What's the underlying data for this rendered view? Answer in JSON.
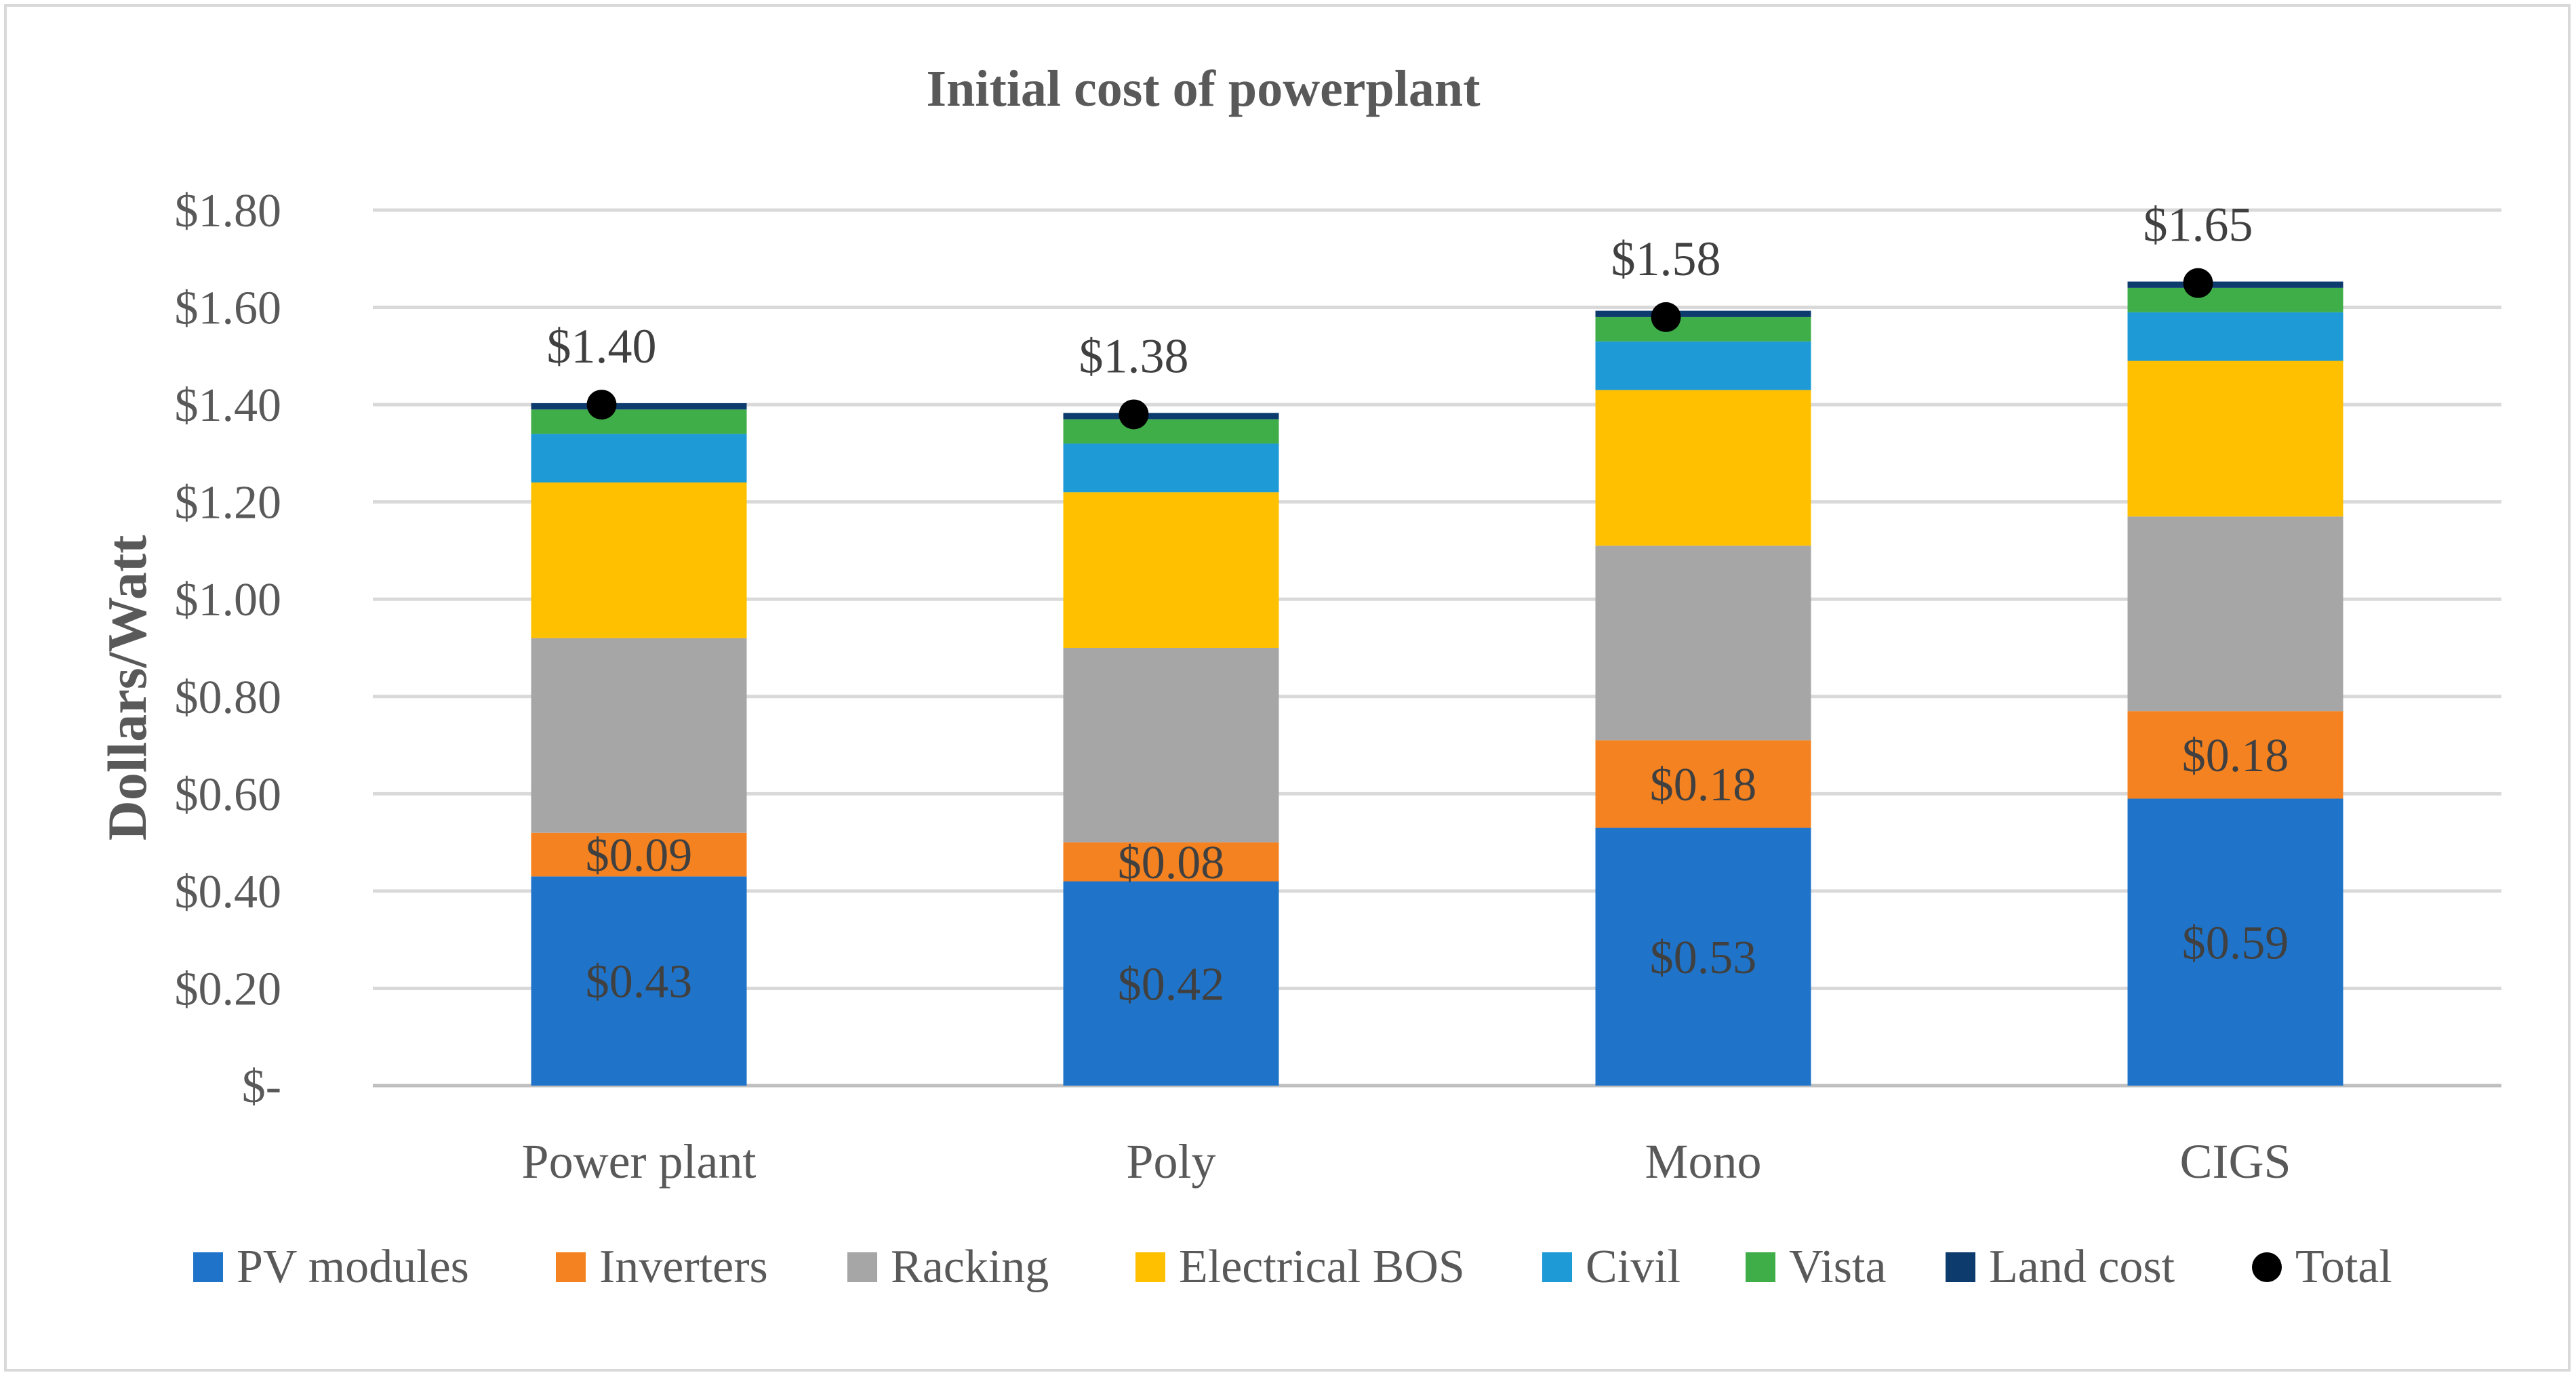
{
  "chart_data": {
    "type": "bar",
    "stacked": true,
    "title": "Initial cost of powerplant",
    "ylabel": "Dollars/Watt",
    "xlabel": "",
    "ylim": [
      0,
      1.8
    ],
    "yticks": [
      0,
      0.2,
      0.4,
      0.6,
      0.8,
      1.0,
      1.2,
      1.4,
      1.6,
      1.8
    ],
    "ytick_labels": [
      "$-",
      "$0.20",
      "$0.40",
      "$0.60",
      "$0.80",
      "$1.00",
      "$1.20",
      "$1.40",
      "$1.60",
      "$1.80"
    ],
    "grid": true,
    "legend_position": "bottom",
    "categories": [
      "Power plant",
      "Poly",
      "Mono",
      "CIGS"
    ],
    "series": [
      {
        "name": "PV modules",
        "color": "#1f74c9",
        "values": [
          0.43,
          0.42,
          0.53,
          0.59
        ],
        "labels": [
          "$0.43",
          "$0.42",
          "$0.53",
          "$0.59"
        ],
        "label_color": "#1a63b0"
      },
      {
        "name": "Inverters",
        "color": "#f58220",
        "values": [
          0.09,
          0.08,
          0.18,
          0.18
        ],
        "labels": [
          "$0.09",
          "$0.08",
          "$0.18",
          "$0.18"
        ],
        "label_color": "#404040"
      },
      {
        "name": "Racking",
        "color": "#a6a6a6",
        "values": [
          0.4,
          0.4,
          0.4,
          0.4
        ]
      },
      {
        "name": "Electrical BOS",
        "color": "#ffc000",
        "values": [
          0.32,
          0.32,
          0.32,
          0.32
        ]
      },
      {
        "name": "Civil",
        "color": "#1e9ad6",
        "values": [
          0.1,
          0.1,
          0.1,
          0.1
        ]
      },
      {
        "name": "Vista",
        "color": "#3fae49",
        "values": [
          0.05,
          0.05,
          0.05,
          0.05
        ]
      },
      {
        "name": "Land cost",
        "color": "#0d3b6e",
        "values": [
          0.013,
          0.013,
          0.013,
          0.013
        ]
      }
    ],
    "total": {
      "name": "Total",
      "color": "#000000",
      "values": [
        1.4,
        1.38,
        1.58,
        1.65
      ],
      "labels": [
        "$1.40",
        "$1.38",
        "$1.58",
        "$1.65"
      ]
    }
  }
}
